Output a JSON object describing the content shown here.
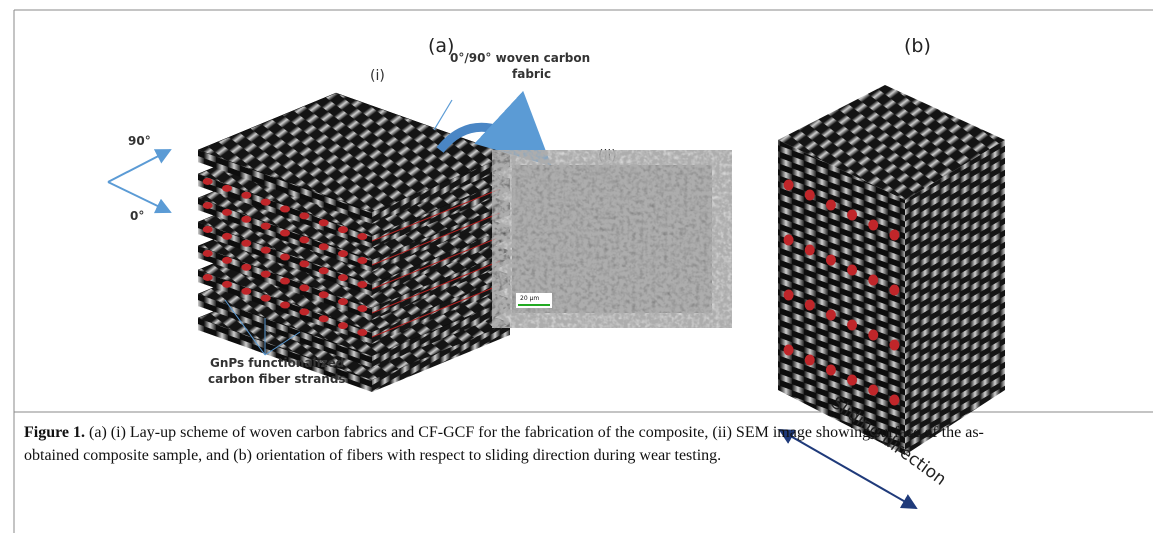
{
  "labels": {
    "panel_a": "(a)",
    "panel_b": "(b)",
    "sub_i": "(i)",
    "sub_ii": "(ii)",
    "fabric": [
      "0°/90° woven carbon",
      "fabric"
    ],
    "deg90": "90°",
    "deg0": "0°",
    "gnp": [
      "GnPs functionalized",
      "carbon fiber strands"
    ],
    "scale": "20 µm",
    "sliding": "Sliding direction"
  },
  "caption": {
    "label": "Figure 1.",
    "text": "(a) (i) Lay-up scheme of woven carbon fabrics and CF-GCF for the fabrication of the composite, (ii) SEM image showing surface of the as-obtained composite sample, and (b) orientation of fibers with respect to sliding direction during wear testing."
  }
}
